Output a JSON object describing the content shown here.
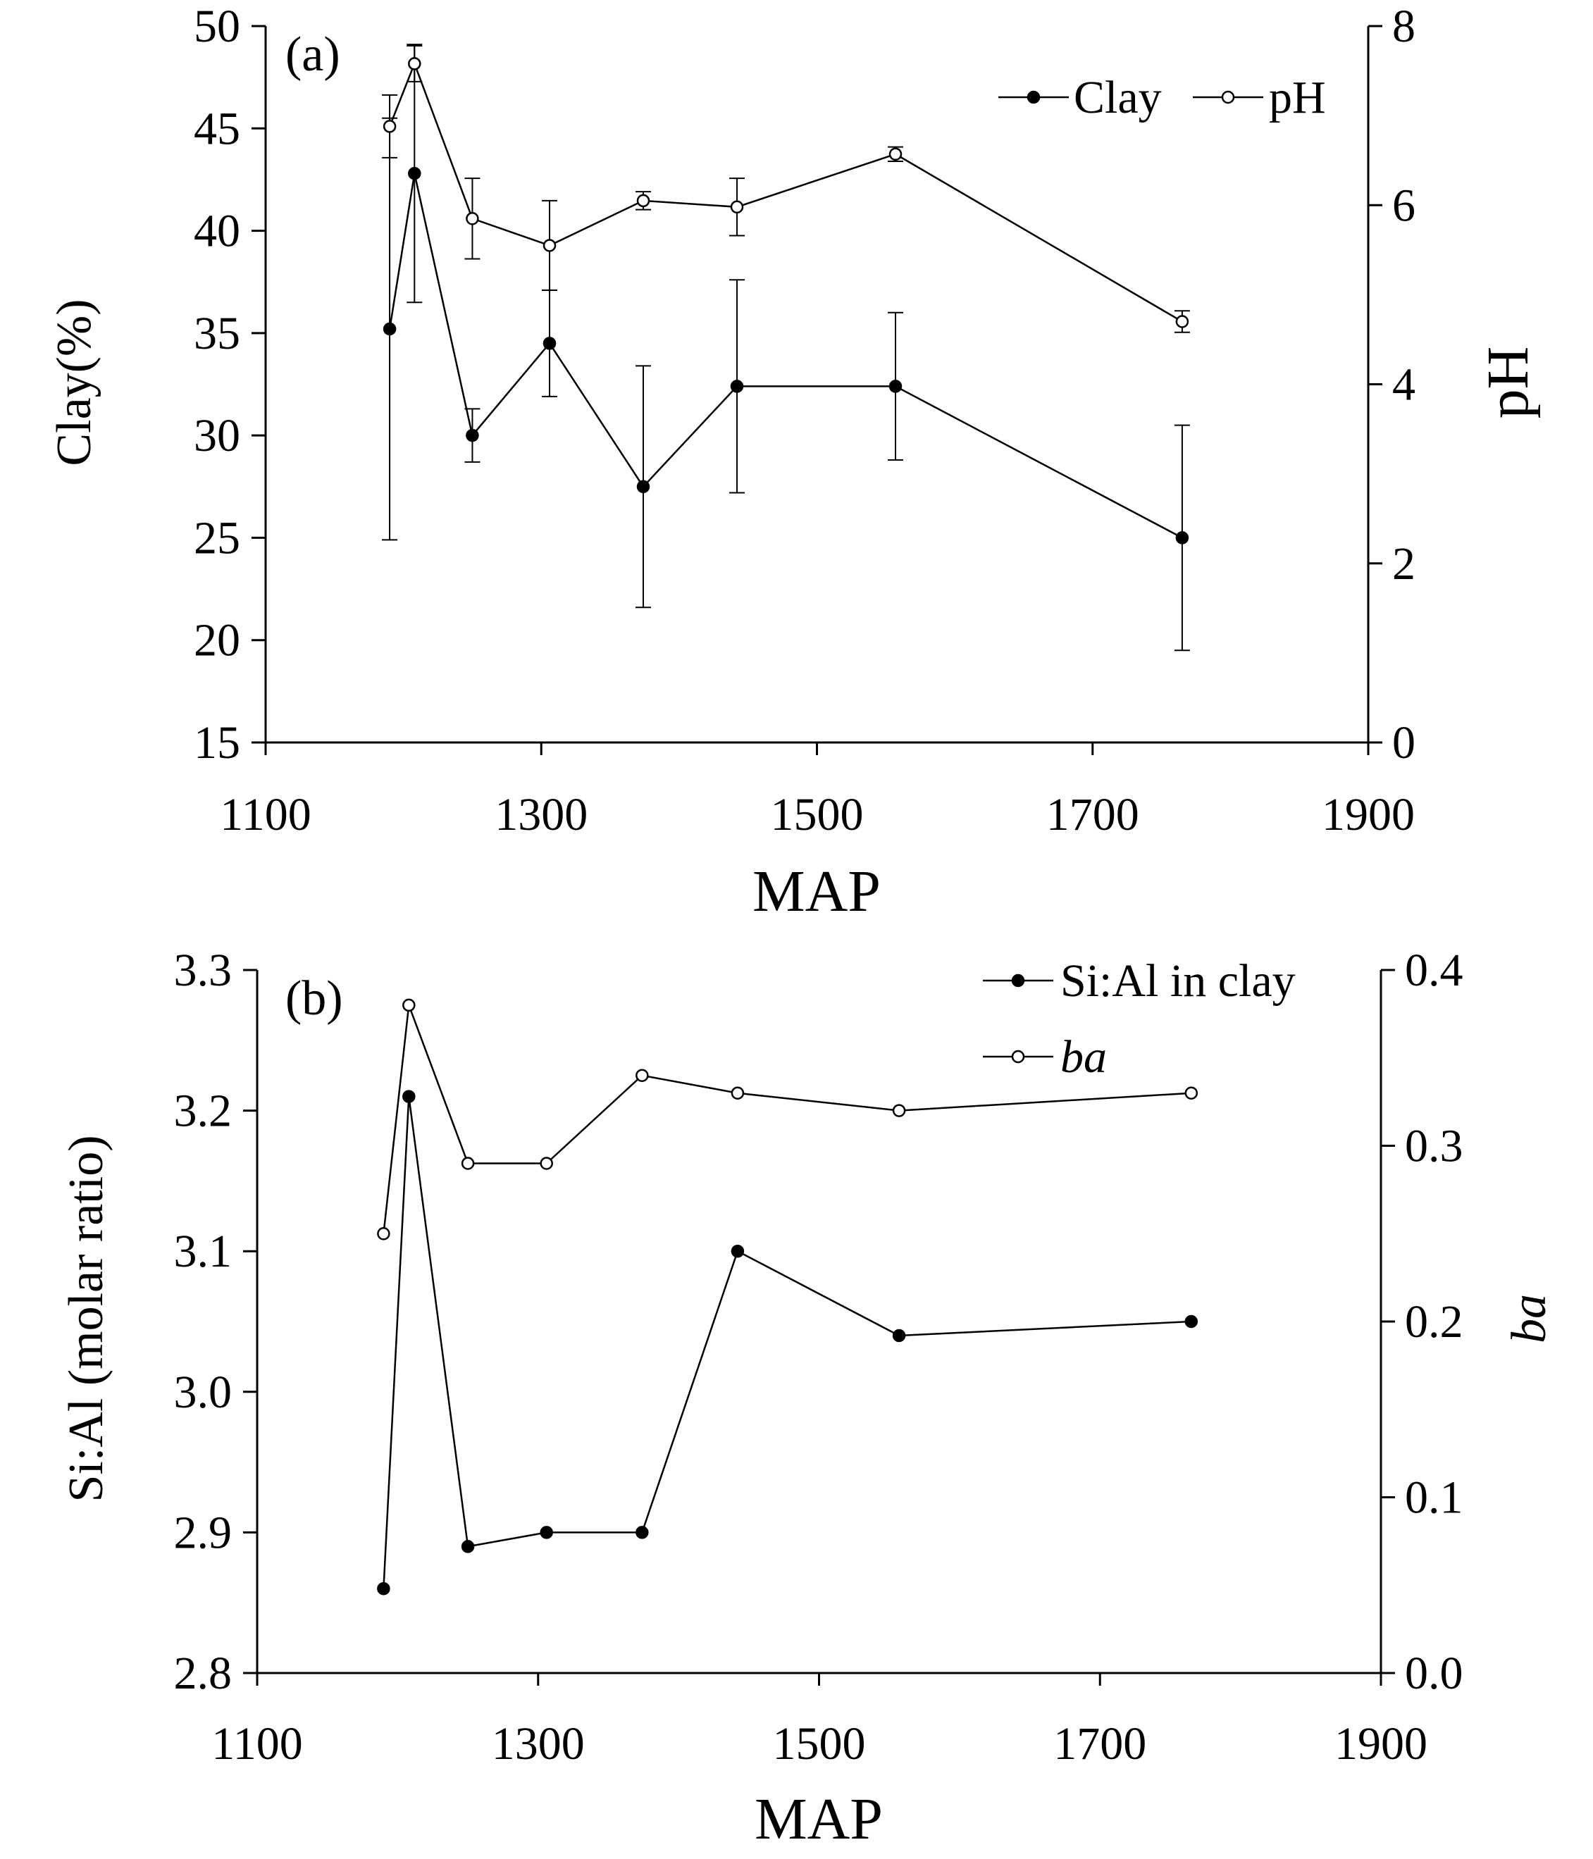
{
  "chart_data": [
    {
      "type": "line",
      "panel_label": "(a)",
      "xlabel": "MAP",
      "ylabel": "Clay(%)",
      "y2label": "pH",
      "xlim": [
        1100,
        1900
      ],
      "ylim": [
        15,
        50
      ],
      "y2lim": [
        0,
        8
      ],
      "xticks": [
        1100,
        1300,
        1500,
        1700,
        1900
      ],
      "yticks": [
        15,
        20,
        25,
        30,
        35,
        40,
        45,
        50
      ],
      "y2ticks": [
        0,
        2,
        4,
        6,
        8
      ],
      "legend_position": "top-right",
      "series": [
        {
          "name": "Clay",
          "axis": "left",
          "marker": "filled",
          "x": [
            1190,
            1208,
            1250,
            1306,
            1374,
            1442,
            1557,
            1765
          ],
          "y": [
            35.2,
            42.8,
            30.0,
            34.5,
            27.5,
            32.4,
            32.4,
            25.0
          ],
          "err": [
            10.3,
            6.3,
            1.3,
            2.6,
            5.9,
            5.2,
            3.6,
            5.5
          ]
        },
        {
          "name": "pH",
          "axis": "right",
          "marker": "open",
          "x": [
            1190,
            1208,
            1250,
            1306,
            1374,
            1442,
            1557,
            1765
          ],
          "y": [
            6.88,
            7.58,
            5.85,
            5.55,
            6.05,
            5.98,
            6.57,
            4.7
          ],
          "err": [
            0.35,
            0.2,
            0.45,
            0.5,
            0.1,
            0.32,
            0.08,
            0.12
          ]
        }
      ]
    },
    {
      "type": "line",
      "panel_label": "(b)",
      "xlabel": "MAP",
      "ylabel": "Si:Al (molar ratio)",
      "y2label": "ba",
      "xlim": [
        1100,
        1900
      ],
      "ylim": [
        2.8,
        3.3
      ],
      "y2lim": [
        0.0,
        0.4
      ],
      "xticks": [
        1100,
        1300,
        1500,
        1700,
        1900
      ],
      "yticks": [
        "2.8",
        "2.9",
        "3.0",
        "3.1",
        "3.2",
        "3.3"
      ],
      "y2ticks": [
        "0.0",
        "0.1",
        "0.2",
        "0.3",
        "0.4"
      ],
      "legend_position": "top-right",
      "series": [
        {
          "name": "Si:Al in clay",
          "axis": "left",
          "marker": "filled",
          "x": [
            1190,
            1208,
            1250,
            1306,
            1374,
            1442,
            1557,
            1765
          ],
          "y": [
            2.86,
            3.21,
            2.89,
            2.9,
            2.9,
            3.1,
            3.04,
            3.05
          ]
        },
        {
          "name": "ba",
          "axis": "right",
          "marker": "open",
          "x": [
            1190,
            1208,
            1250,
            1306,
            1374,
            1442,
            1557,
            1765
          ],
          "y": [
            0.25,
            0.38,
            0.29,
            0.29,
            0.34,
            0.33,
            0.32,
            0.33
          ]
        }
      ]
    }
  ]
}
